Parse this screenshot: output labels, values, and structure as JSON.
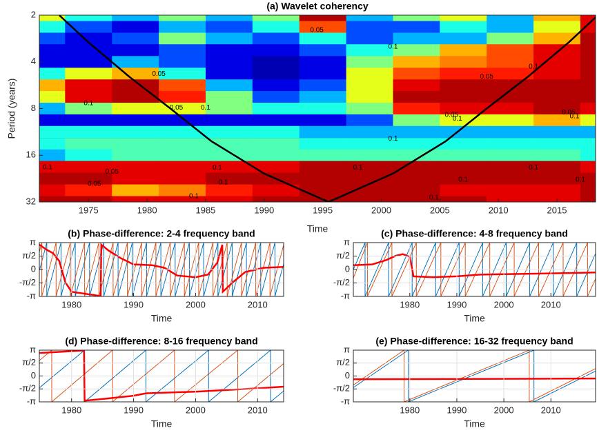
{
  "chart_data": [
    {
      "type": "heatmap",
      "title": "(a) Wavelet coherency",
      "x_label": "Time",
      "y_label": "Period (years)",
      "x": [
        1971,
        1975,
        1979,
        1983,
        1987,
        1991,
        1995,
        1999,
        2003,
        2007,
        2011,
        2015,
        2019
      ],
      "y": [
        2,
        2.38,
        2.83,
        3.36,
        4,
        4.76,
        5.66,
        6.73,
        8,
        9.51,
        11.3,
        13.5,
        16,
        19,
        22.6,
        26.9,
        32
      ],
      "values": [
        [
          0.6,
          0.4,
          0.3,
          0.5,
          0.3,
          0.5,
          0.95,
          0.3,
          0.5,
          0.6,
          0.3,
          0.7,
          0.9
        ],
        [
          0.4,
          0.2,
          0.1,
          0.3,
          0.2,
          0.4,
          0.8,
          0.2,
          0.2,
          0.4,
          0.3,
          0.6,
          0.9
        ],
        [
          0.2,
          0.1,
          0.2,
          0.5,
          0.3,
          0.2,
          0.4,
          0.2,
          0.3,
          0.3,
          0.5,
          0.7,
          0.95
        ],
        [
          0.1,
          0.1,
          0.1,
          0.2,
          0.1,
          0.1,
          0.2,
          0.4,
          0.5,
          0.7,
          0.8,
          0.9,
          0.95
        ],
        [
          0.1,
          0.1,
          0.3,
          0.2,
          0.1,
          0.05,
          0.1,
          0.5,
          0.7,
          0.75,
          0.8,
          0.9,
          0.95
        ],
        [
          0.4,
          0.6,
          0.7,
          0.4,
          0.1,
          0.05,
          0.1,
          0.6,
          0.8,
          0.85,
          0.85,
          0.9,
          0.95
        ],
        [
          0.7,
          0.9,
          0.95,
          0.8,
          0.3,
          0.1,
          0.2,
          0.6,
          0.9,
          0.95,
          0.95,
          0.95,
          0.95
        ],
        [
          0.6,
          0.9,
          0.95,
          0.85,
          0.5,
          0.2,
          0.3,
          0.6,
          0.95,
          0.95,
          0.95,
          0.95,
          0.95
        ],
        [
          0.3,
          0.5,
          0.6,
          0.6,
          0.5,
          0.4,
          0.4,
          0.5,
          0.85,
          0.9,
          0.9,
          0.95,
          0.9
        ],
        [
          0.1,
          0.1,
          0.1,
          0.1,
          0.1,
          0.1,
          0.1,
          0.2,
          0.5,
          0.6,
          0.6,
          0.7,
          0.6
        ],
        [
          0.4,
          0.4,
          0.4,
          0.4,
          0.4,
          0.4,
          0.3,
          0.3,
          0.3,
          0.3,
          0.3,
          0.3,
          0.3
        ],
        [
          0.4,
          0.45,
          0.45,
          0.45,
          0.45,
          0.45,
          0.4,
          0.4,
          0.4,
          0.4,
          0.4,
          0.4,
          0.4
        ],
        [
          0.3,
          0.4,
          0.45,
          0.45,
          0.45,
          0.45,
          0.45,
          0.45,
          0.45,
          0.45,
          0.45,
          0.45,
          0.4
        ],
        [
          0.9,
          0.9,
          0.9,
          0.9,
          0.9,
          0.9,
          0.95,
          0.95,
          0.95,
          0.95,
          0.95,
          0.95,
          0.9
        ],
        [
          0.95,
          0.95,
          0.9,
          0.9,
          0.95,
          0.95,
          0.95,
          0.95,
          0.95,
          0.95,
          0.95,
          0.95,
          0.95
        ],
        [
          0.9,
          0.85,
          0.7,
          0.75,
          0.85,
          0.9,
          0.95,
          0.95,
          0.95,
          0.9,
          0.9,
          0.9,
          0.95
        ],
        [
          0.95,
          0.95,
          0.9,
          0.9,
          0.9,
          0.95,
          0.95,
          0.95,
          0.95,
          0.95,
          0.9,
          0.9,
          0.95
        ]
      ],
      "colormap": "jet",
      "clim": [
        0,
        1
      ],
      "xlim": [
        1970.8,
        2018.3
      ],
      "ylim": [
        2,
        32
      ],
      "y_log_base": 2,
      "y_reversed": true,
      "xticks": [
        1975,
        1980,
        1985,
        1990,
        1995,
        2000,
        2005,
        2010,
        2015
      ],
      "yticks": [
        2,
        4,
        8,
        16,
        32
      ],
      "cone": {
        "color": "#000000",
        "x": [
          1972.5,
          1975,
          1978.5,
          1982,
          1985.5,
          1990,
          1995.5,
          2001,
          2005.5,
          2009,
          2012.5,
          2016,
          2018.5
        ],
        "y": [
          2,
          3,
          5,
          8,
          13,
          21,
          32,
          21,
          13,
          8,
          5,
          3,
          2
        ]
      },
      "annotations": [
        {
          "text": "0.05",
          "x": 1994.5,
          "y": 2.5
        },
        {
          "text": "0.1",
          "x": 1975,
          "y": 7.4
        },
        {
          "text": "0.05",
          "x": 1982.5,
          "y": 7.9
        },
        {
          "text": "0.1",
          "x": 1985,
          "y": 7.9
        },
        {
          "text": "0.05",
          "x": 1981,
          "y": 4.8
        },
        {
          "text": "0.05",
          "x": 2006,
          "y": 8.8
        },
        {
          "text": "0.1",
          "x": 2006.5,
          "y": 9.3
        },
        {
          "text": "0.1",
          "x": 2016.5,
          "y": 9.0
        },
        {
          "text": "0.05",
          "x": 2016,
          "y": 8.5
        },
        {
          "text": "0.1",
          "x": 2013,
          "y": 4.3
        },
        {
          "text": "0.05",
          "x": 2009,
          "y": 5.0
        },
        {
          "text": "0.1",
          "x": 2001,
          "y": 3.2
        },
        {
          "text": "0.1",
          "x": 2001,
          "y": 12.5
        },
        {
          "text": "0.1",
          "x": 1971.5,
          "y": 19.2
        },
        {
          "text": "0.05",
          "x": 1977,
          "y": 20.5
        },
        {
          "text": "0.1",
          "x": 1986,
          "y": 19.3
        },
        {
          "text": "0.1",
          "x": 1998,
          "y": 19.3
        },
        {
          "text": "0.1",
          "x": 2013,
          "y": 19.3
        },
        {
          "text": "0.1",
          "x": 2007,
          "y": 23
        },
        {
          "text": "0.1",
          "x": 2017,
          "y": 23
        },
        {
          "text": "0.05",
          "x": 1975.5,
          "y": 24.5
        },
        {
          "text": "0.1",
          "x": 1986.5,
          "y": 24
        },
        {
          "text": "0.1",
          "x": 1984,
          "y": 29.5
        },
        {
          "text": "0.1",
          "x": 2004.5,
          "y": 30
        }
      ]
    },
    {
      "type": "line",
      "title": "(b) Phase-difference: 2-4 frequency band",
      "x_label": "Time",
      "xlim": [
        1974.8,
        2014.2
      ],
      "ylim": [
        -3.1416,
        3.1416
      ],
      "xticks": [
        1980,
        1990,
        2000,
        2010
      ],
      "yticks": [
        {
          "value": -3.1416,
          "label": "-π"
        },
        {
          "value": -1.5708,
          "label": "-π/2"
        },
        0,
        {
          "value": 1.5708,
          "label": "π/2"
        },
        {
          "value": 3.1416,
          "label": "π"
        }
      ],
      "grid": true,
      "series": [
        {
          "color": "#0072bd",
          "width": 1,
          "x": [
            1974.8,
            1976,
            1976,
            1978.3,
            1978.3,
            1980.6,
            1980.6,
            1982.9,
            1982.9,
            1985.2,
            1985.2,
            1987.5,
            1987.5,
            1989.8,
            1989.8,
            1992.1,
            1992.1,
            1994.4,
            1994.4,
            1996.7,
            1996.7,
            1999,
            1999,
            2001.3,
            2001.3,
            2003.6,
            2003.6,
            2005.9,
            2005.9,
            2008.2,
            2008.2,
            2010.5,
            2010.5,
            2012.8,
            2012.8,
            2014.2
          ],
          "values": [
            -0.14,
            3.14,
            -3.14,
            3.14,
            -3.14,
            3.14,
            -3.14,
            3.14,
            -3.14,
            3.14,
            -3.14,
            3.14,
            -3.14,
            3.14,
            -3.14,
            3.14,
            -3.14,
            3.14,
            -3.14,
            3.14,
            -3.14,
            3.14,
            -3.14,
            3.14,
            -3.14,
            3.14,
            -3.14,
            3.14,
            -3.14,
            3.14,
            -3.14,
            3.14,
            -3.14,
            3.14,
            -3.14,
            0.68
          ]
        },
        {
          "color": "#d95319",
          "width": 1,
          "x": [
            1974.8,
            1975.2,
            1975.2,
            1977.5,
            1977.5,
            1979.8,
            1979.8,
            1982.1,
            1982.1,
            1984.4,
            1984.4,
            1986.7,
            1986.7,
            1989,
            1989,
            1991.3,
            1991.3,
            1993.6,
            1993.6,
            1995.9,
            1995.9,
            1998.2,
            1998.2,
            2000.5,
            2000.5,
            2002.8,
            2002.8,
            2005.1,
            2005.1,
            2007.4,
            2007.4,
            2009.7,
            2009.7,
            2012,
            2012,
            2014.2
          ],
          "values": [
            2.05,
            3.14,
            -3.14,
            3.14,
            -3.14,
            3.14,
            -3.14,
            3.14,
            -3.14,
            3.14,
            -3.14,
            3.14,
            -3.14,
            3.14,
            -3.14,
            3.14,
            -3.14,
            3.14,
            -3.14,
            3.14,
            -3.14,
            3.14,
            -3.14,
            3.14,
            -3.14,
            3.14,
            -3.14,
            3.14,
            -3.14,
            3.14,
            -3.14,
            3.14,
            -3.14,
            3.14,
            -3.14,
            2.87
          ]
        },
        {
          "color": "#ff0000",
          "width": 2.5,
          "x": [
            1974.8,
            1976,
            1977,
            1978,
            1979,
            1980,
            1984.7,
            1984.8,
            1986,
            1988,
            1990,
            1993,
            1995,
            1997,
            2000,
            2002,
            2003.5,
            2004.3,
            2004.4,
            2006,
            2008,
            2011,
            2014.2
          ],
          "values": [
            2.9,
            2.3,
            1.9,
            1.0,
            -1.5,
            -2.6,
            -3.1,
            2.9,
            2.2,
            1.3,
            0.6,
            0.5,
            0.2,
            -0.7,
            -0.9,
            -0.6,
            0.8,
            2.9,
            -2.6,
            -1.5,
            -0.3,
            0.2,
            0.3
          ]
        }
      ]
    },
    {
      "type": "line",
      "title": "(c) Phase-difference: 4-8 frequency band",
      "x_label": "Time",
      "xlim": [
        1968,
        2019.5
      ],
      "ylim": [
        -3.1416,
        3.1416
      ],
      "xticks": [
        1980,
        1990,
        2000,
        2010
      ],
      "yticks": [
        {
          "value": -3.1416,
          "label": "-π"
        },
        {
          "value": -1.5708,
          "label": "-π/2"
        },
        0,
        {
          "value": 1.5708,
          "label": "π/2"
        },
        {
          "value": 3.1416,
          "label": "π"
        }
      ],
      "grid": true,
      "series": [
        {
          "color": "#0072bd",
          "width": 1,
          "x": [
            1968,
            1970.5,
            1970.5,
            1975.5,
            1975.5,
            1980.5,
            1980.5,
            1985.5,
            1985.5,
            1990.5,
            1990.5,
            1995.5,
            1995.5,
            2000.5,
            2000.5,
            2005.5,
            2005.5,
            2010.5,
            2010.5,
            2015.5,
            2015.5,
            2019.5
          ],
          "values": [
            0,
            3.14,
            -3.14,
            3.14,
            -3.14,
            3.14,
            -3.14,
            3.14,
            -3.14,
            3.14,
            -3.14,
            3.14,
            -3.14,
            3.14,
            -3.14,
            3.14,
            -3.14,
            3.14,
            -3.14,
            3.14,
            -3.14,
            1.88
          ]
        },
        {
          "color": "#d95319",
          "width": 1,
          "x": [
            1968,
            1971,
            1971,
            1976.2,
            1976.2,
            1981.4,
            1981.4,
            1986.6,
            1986.6,
            1991.8,
            1991.8,
            1997,
            1997,
            2002.2,
            2002.2,
            2007.4,
            2007.4,
            2012.6,
            2012.6,
            2017.8,
            2017.8,
            2019.5
          ],
          "values": [
            -1,
            3.14,
            -3.14,
            3.14,
            -3.14,
            3.14,
            -3.14,
            3.14,
            -3.14,
            3.14,
            -3.14,
            3.14,
            -3.14,
            3.14,
            -3.14,
            3.14,
            -3.14,
            3.14,
            -3.14,
            3.14,
            -3.14,
            -1.09
          ]
        },
        {
          "color": "#ff0000",
          "width": 2.5,
          "x": [
            1968,
            1972,
            1975,
            1977,
            1978.5,
            1980,
            1980.8,
            1985,
            1990,
            1995,
            2000,
            2005,
            2010,
            2015,
            2019.5
          ],
          "values": [
            0.5,
            0.6,
            1.1,
            1.6,
            1.8,
            1.5,
            -0.8,
            -0.9,
            -0.8,
            -0.6,
            -0.55,
            -0.5,
            -0.45,
            -0.4,
            -0.35
          ]
        }
      ]
    },
    {
      "type": "line",
      "title": "(d) Phase-difference: 8-16 frequency band",
      "x_label": "Time",
      "xlim": [
        1974.8,
        2014.2
      ],
      "ylim": [
        -3.1416,
        3.1416
      ],
      "xticks": [
        1980,
        1990,
        2000,
        2010
      ],
      "yticks": [
        {
          "value": -3.1416,
          "label": "-π"
        },
        {
          "value": -1.5708,
          "label": "-π/2"
        },
        0,
        {
          "value": 1.5708,
          "label": "π/2"
        },
        {
          "value": 3.1416,
          "label": "π"
        }
      ],
      "grid": true,
      "series": [
        {
          "color": "#0072bd",
          "width": 1,
          "x": [
            1974.8,
            1982.1,
            1982.1,
            1992,
            1992,
            2002.1,
            2002.1,
            2012.1,
            2012.1,
            2014.2
          ],
          "values": [
            -1.44,
            3.14,
            -3.14,
            3.14,
            -3.14,
            3.14,
            -3.14,
            3.14,
            -3.14,
            -1.82
          ]
        },
        {
          "color": "#d95319",
          "width": 1,
          "x": [
            1974.8,
            1976.8,
            1976.8,
            1986.6,
            1986.6,
            1996.6,
            1996.6,
            2006.8,
            2006.8,
            2014.2
          ],
          "values": [
            1.88,
            3.14,
            -3.14,
            3.14,
            -3.14,
            3.14,
            -3.14,
            3.14,
            -3.14,
            1.51
          ]
        },
        {
          "color": "#ff0000",
          "width": 2.5,
          "x": [
            1974.8,
            1982,
            1982.1,
            1985,
            1990,
            1992,
            2000,
            2010,
            2014.2
          ],
          "values": [
            2.8,
            3.1,
            -3.0,
            -2.8,
            -2.4,
            -2.1,
            -1.9,
            -1.5,
            -1.3
          ]
        }
      ]
    },
    {
      "type": "line",
      "title": "(e) Phase-difference: 16-32 frequency band",
      "x_label": "Time",
      "xlim": [
        1968,
        2019.5
      ],
      "ylim": [
        -3.1416,
        3.1416
      ],
      "xticks": [
        1980,
        1990,
        2000,
        2010
      ],
      "yticks": [
        {
          "value": -3.1416,
          "label": "-π"
        },
        {
          "value": -1.5708,
          "label": "-π/2"
        },
        0,
        {
          "value": 1.5708,
          "label": "π/2"
        },
        {
          "value": 3.1416,
          "label": "π"
        }
      ],
      "grid": true,
      "series": [
        {
          "color": "#0072bd",
          "width": 1,
          "x": [
            1968,
            1979.7,
            1979.7,
            2006.4,
            2006.4,
            2019.5
          ],
          "values": [
            -1.4,
            3.14,
            -3.14,
            3.14,
            -3.14,
            0.6
          ]
        },
        {
          "color": "#d95319",
          "width": 1,
          "x": [
            1968,
            1978.8,
            1978.8,
            2005.4,
            2005.4,
            2019.5
          ],
          "values": [
            -1.1,
            3.14,
            -3.14,
            3.14,
            -3.14,
            0.9
          ]
        },
        {
          "color": "#ff0000",
          "width": 2.5,
          "x": [
            1968,
            2019.5
          ],
          "values": [
            -0.4,
            -0.3
          ]
        }
      ]
    }
  ]
}
